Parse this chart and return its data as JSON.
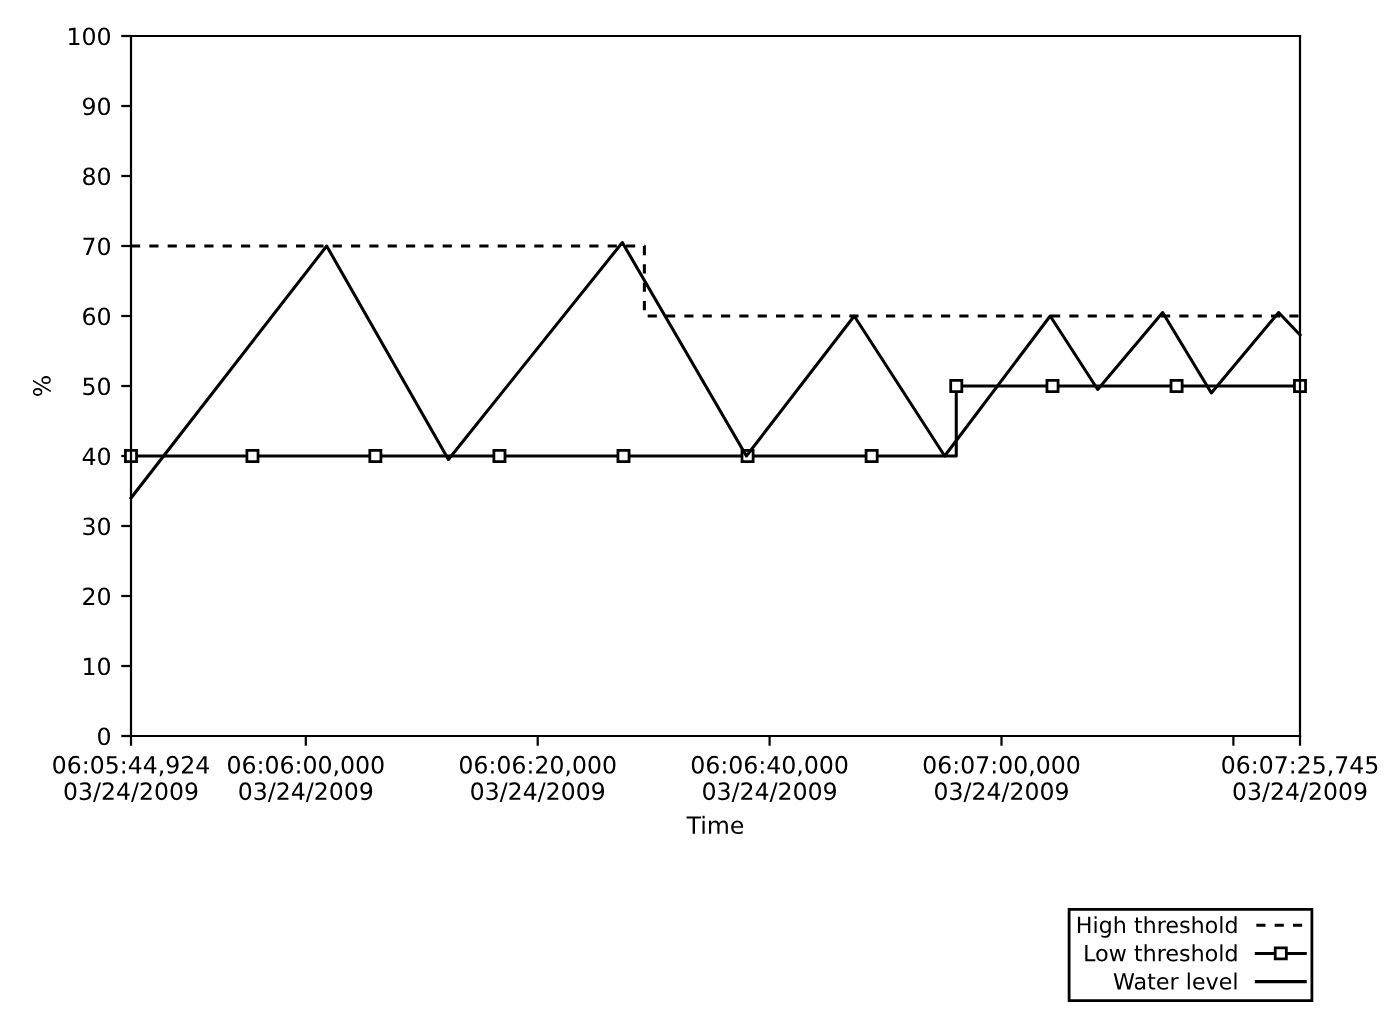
{
  "chart_data": {
    "type": "line",
    "xlabel": "Time",
    "ylabel": "%",
    "xlim": [
      "2009-03-24T06:05:44.924",
      "2009-03-24T06:07:25.745"
    ],
    "ylim": [
      0,
      100
    ],
    "xticks": [
      {
        "value": "2009-03-24T06:05:44.924",
        "label": "06:05:44,924\n03/24/2009"
      },
      {
        "value": "2009-03-24T06:06:00",
        "label": "06:06:00,000\n03/24/2009"
      },
      {
        "value": "2009-03-24T06:06:20",
        "label": "06:06:20,000\n03/24/2009"
      },
      {
        "value": "2009-03-24T06:06:40",
        "label": "06:06:40,000\n03/24/2009"
      },
      {
        "value": "2009-03-24T06:07:00",
        "label": "06:07:00,000\n03/24/2009"
      },
      {
        "value": "2009-03-24T06:07:20",
        "label": null
      },
      {
        "value": "2009-03-24T06:07:25.745",
        "label": "06:07:25,745\n03/24/2009"
      }
    ],
    "yticks": [
      0,
      10,
      20,
      30,
      40,
      50,
      60,
      70,
      80,
      90,
      100
    ],
    "grid": false,
    "legend": "bottom right",
    "series": [
      {
        "name": "High threshold",
        "type": "step",
        "color": "#000000",
        "line_style": "dashed",
        "marker": "none",
        "x": [
          "2009-03-24T06:05:44.924",
          "2009-03-24T06:06:29.2",
          "2009-03-24T06:07:25.745"
        ],
        "values": [
          70,
          60,
          60
        ]
      },
      {
        "name": "Low threshold",
        "type": "step",
        "color": "#000000",
        "line_style": "solid",
        "marker": "square",
        "x": [
          "2009-03-24T06:05:44.924",
          "2009-03-24T06:05:55.4",
          "2009-03-24T06:06:06.0",
          "2009-03-24T06:06:16.7",
          "2009-03-24T06:06:27.4",
          "2009-03-24T06:06:38.1",
          "2009-03-24T06:06:48.8",
          "2009-03-24T06:06:56.1",
          "2009-03-24T06:07:04.4",
          "2009-03-24T06:07:15.1",
          "2009-03-24T06:07:25.745"
        ],
        "values": [
          40,
          40,
          40,
          40,
          40,
          40,
          40,
          50,
          50,
          50,
          50
        ]
      },
      {
        "name": "Water level",
        "color": "#000000",
        "line_style": "solid",
        "marker": "none",
        "x": [
          "2009-03-24T06:05:44.924",
          "2009-03-24T06:06:01.8",
          "2009-03-24T06:06:12.3",
          "2009-03-24T06:06:27.3",
          "2009-03-24T06:06:38.0",
          "2009-03-24T06:06:47.3",
          "2009-03-24T06:06:55.1",
          "2009-03-24T06:07:04.2",
          "2009-03-24T06:07:08.3",
          "2009-03-24T06:07:13.9",
          "2009-03-24T06:07:18.1",
          "2009-03-24T06:07:23.9",
          "2009-03-24T06:07:25.745"
        ],
        "values": [
          34,
          70,
          39.5,
          70.5,
          40,
          60,
          40,
          60,
          49.5,
          60.5,
          49,
          60.5,
          57.3
        ]
      }
    ]
  }
}
